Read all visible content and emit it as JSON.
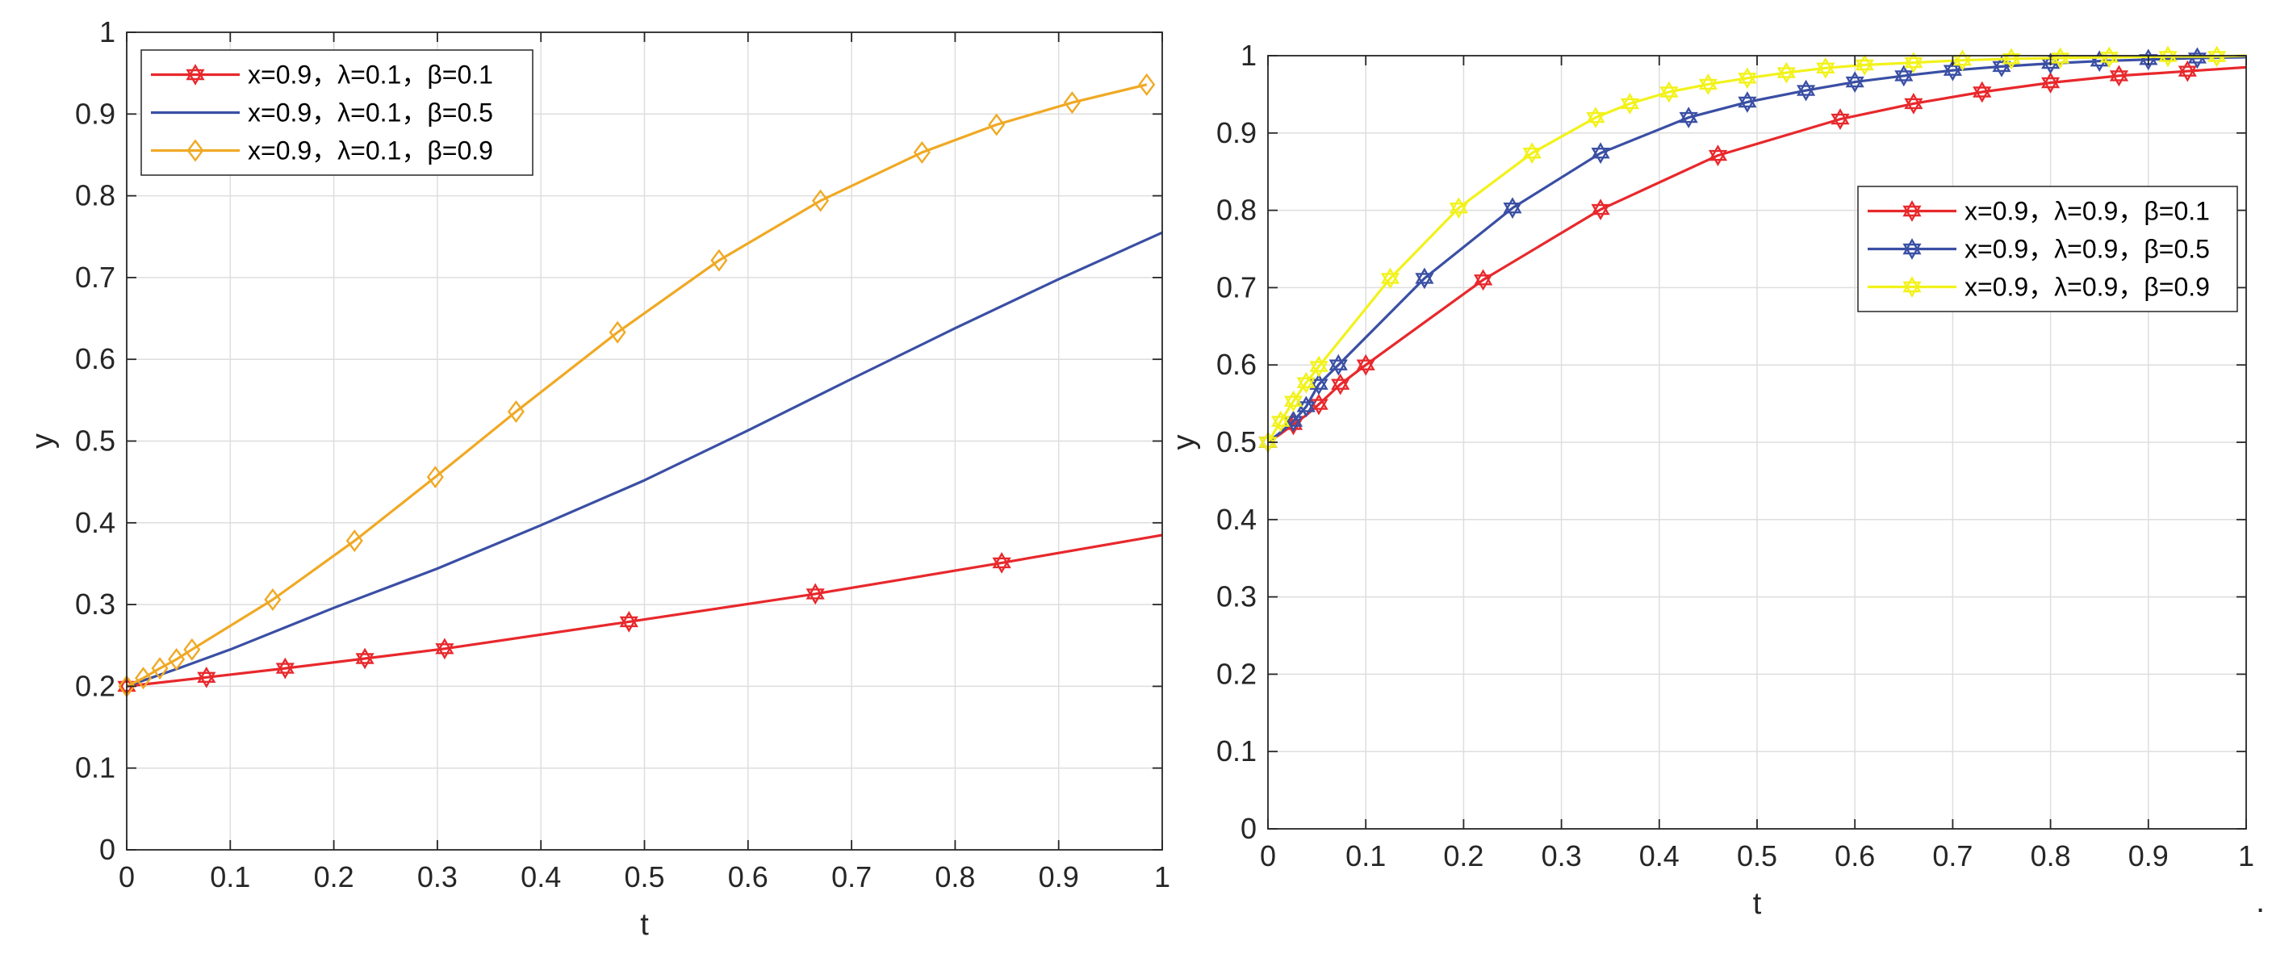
{
  "trailing_mark": ".",
  "chart_data": [
    {
      "type": "line",
      "xlabel": "t",
      "ylabel": "y",
      "xlim": [
        0,
        1
      ],
      "ylim": [
        0,
        1
      ],
      "xticks": [
        "0",
        "0.1",
        "0.2",
        "0.3",
        "0.4",
        "0.5",
        "0.6",
        "0.7",
        "0.8",
        "0.9",
        "1"
      ],
      "yticks": [
        "0",
        "0.1",
        "0.2",
        "0.3",
        "0.4",
        "0.5",
        "0.6",
        "0.7",
        "0.8",
        "0.9",
        "1"
      ],
      "grid": true,
      "legend_position": "top-left",
      "series": [
        {
          "name": "x=0.9，λ=0.1，β=0.1",
          "color": "#E8282C",
          "marker": "hexagram",
          "x": [
            0,
            0.077,
            0.153,
            0.23,
            0.307,
            0.485,
            0.665,
            0.845,
            1.0
          ],
          "y": [
            0.2,
            0.211,
            0.222,
            0.234,
            0.246,
            0.279,
            0.313,
            0.351,
            0.385
          ],
          "marker_x": [
            0,
            0.077,
            0.153,
            0.23,
            0.307,
            0.485,
            0.665,
            0.845
          ]
        },
        {
          "name": "x=0.9，λ=0.1，β=0.5",
          "color": "#3A4FA4",
          "marker": "none",
          "x": [
            0,
            0.05,
            0.1,
            0.2,
            0.3,
            0.4,
            0.5,
            0.6,
            0.7,
            0.8,
            0.9,
            1.0
          ],
          "y": [
            0.2,
            0.222,
            0.245,
            0.296,
            0.344,
            0.397,
            0.452,
            0.513,
            0.576,
            0.638,
            0.698,
            0.755
          ]
        },
        {
          "name": "x=0.9，λ=0.1，β=0.9",
          "color": "#F0A924",
          "marker": "diamond",
          "x": [
            0,
            0.016,
            0.032,
            0.048,
            0.063,
            0.141,
            0.22,
            0.298,
            0.376,
            0.474,
            0.572,
            0.67,
            0.768,
            0.84,
            0.913,
            0.985
          ],
          "y": [
            0.2,
            0.21,
            0.222,
            0.233,
            0.245,
            0.306,
            0.378,
            0.456,
            0.536,
            0.633,
            0.721,
            0.794,
            0.853,
            0.887,
            0.914,
            0.936
          ],
          "marker_x": [
            0,
            0.016,
            0.032,
            0.048,
            0.063,
            0.141,
            0.22,
            0.298,
            0.376,
            0.474,
            0.572,
            0.67,
            0.768,
            0.84,
            0.913,
            0.985
          ]
        }
      ]
    },
    {
      "type": "line",
      "xlabel": "t",
      "ylabel": "y",
      "xlim": [
        0,
        1
      ],
      "ylim": [
        0,
        1
      ],
      "xticks": [
        "0",
        "0.1",
        "0.2",
        "0.3",
        "0.4",
        "0.5",
        "0.6",
        "0.7",
        "0.8",
        "0.9",
        "1"
      ],
      "yticks": [
        "0",
        "0.1",
        "0.2",
        "0.3",
        "0.4",
        "0.5",
        "0.6",
        "0.7",
        "0.8",
        "0.9",
        "1"
      ],
      "grid": true,
      "legend_position": "right",
      "series": [
        {
          "name": "x=0.9，λ=0.9，β=0.1",
          "color": "#E8282C",
          "marker": "hexagram",
          "x": [
            0,
            0.013,
            0.026,
            0.039,
            0.052,
            0.074,
            0.1,
            0.22,
            0.34,
            0.46,
            0.585,
            0.66,
            0.73,
            0.8,
            0.87,
            0.94,
            1.0
          ],
          "y": [
            0.5,
            0.511,
            0.523,
            0.535,
            0.549,
            0.575,
            0.6,
            0.71,
            0.801,
            0.871,
            0.918,
            0.938,
            0.953,
            0.965,
            0.974,
            0.98,
            0.985
          ],
          "marker_x": [
            0,
            0.026,
            0.052,
            0.074,
            0.1,
            0.22,
            0.34,
            0.46,
            0.585,
            0.66,
            0.73,
            0.8,
            0.87,
            0.94
          ]
        },
        {
          "name": "x=0.9，λ=0.9，β=0.5",
          "color": "#3A4FA4",
          "marker": "hexagram",
          "x": [
            0,
            0.013,
            0.026,
            0.039,
            0.052,
            0.072,
            0.16,
            0.25,
            0.34,
            0.43,
            0.49,
            0.55,
            0.6,
            0.65,
            0.7,
            0.75,
            0.8,
            0.85,
            0.9,
            0.95,
            1.0
          ],
          "y": [
            0.5,
            0.513,
            0.527,
            0.546,
            0.575,
            0.6,
            0.712,
            0.803,
            0.874,
            0.92,
            0.94,
            0.955,
            0.966,
            0.974,
            0.981,
            0.986,
            0.99,
            0.993,
            0.995,
            0.997,
            0.998
          ],
          "marker_x": [
            0,
            0.026,
            0.039,
            0.052,
            0.072,
            0.16,
            0.25,
            0.34,
            0.43,
            0.49,
            0.55,
            0.6,
            0.65,
            0.7,
            0.75,
            0.8,
            0.85,
            0.9,
            0.95
          ]
        },
        {
          "name": "x=0.9，λ=0.9，β=0.9",
          "color": "#F2F21A",
          "marker": "hexagram",
          "x": [
            0,
            0.013,
            0.026,
            0.039,
            0.052,
            0.125,
            0.195,
            0.27,
            0.335,
            0.37,
            0.41,
            0.45,
            0.49,
            0.53,
            0.57,
            0.61,
            0.66,
            0.71,
            0.76,
            0.81,
            0.86,
            0.92,
            0.97,
            1.0
          ],
          "y": [
            0.5,
            0.527,
            0.553,
            0.577,
            0.598,
            0.712,
            0.803,
            0.874,
            0.92,
            0.938,
            0.953,
            0.963,
            0.971,
            0.978,
            0.984,
            0.988,
            0.991,
            0.994,
            0.996,
            0.997,
            0.998,
            0.999,
            0.999,
            1.0
          ],
          "marker_x": [
            0,
            0.013,
            0.026,
            0.039,
            0.052,
            0.125,
            0.195,
            0.27,
            0.335,
            0.37,
            0.41,
            0.45,
            0.49,
            0.53,
            0.57,
            0.61,
            0.66,
            0.71,
            0.76,
            0.81,
            0.86,
            0.92,
            0.97
          ]
        }
      ]
    }
  ]
}
